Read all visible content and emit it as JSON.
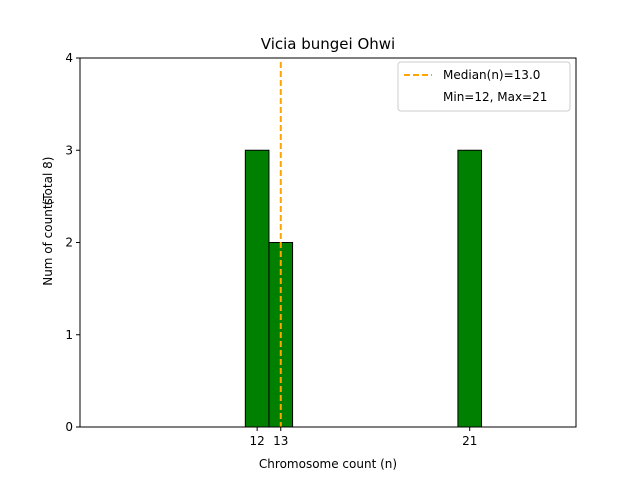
{
  "chart_data": {
    "type": "bar",
    "title": "Vicia bungei Ohwi",
    "xlabel": "Chromosome count (n)",
    "ylabel": "Num of counts",
    "ylabel_extra": "(Total 8)",
    "xlim": [
      4.5,
      25.5
    ],
    "ylim": [
      0,
      4
    ],
    "yticks": [
      0,
      1,
      2,
      3,
      4
    ],
    "xticks": [
      12,
      13,
      21
    ],
    "bin_width": 1,
    "bars": [
      {
        "x": 12,
        "value": 3
      },
      {
        "x": 13,
        "value": 2
      },
      {
        "x": 21,
        "value": 3
      }
    ],
    "baseline_end": 24.5,
    "median_line": {
      "x": 13.0,
      "color": "#ffa500"
    },
    "bar_color": "#008000",
    "legend": {
      "position": "top-right",
      "entries": [
        "Median(n)=13.0",
        "Min=12, Max=21"
      ]
    },
    "grid": false
  }
}
